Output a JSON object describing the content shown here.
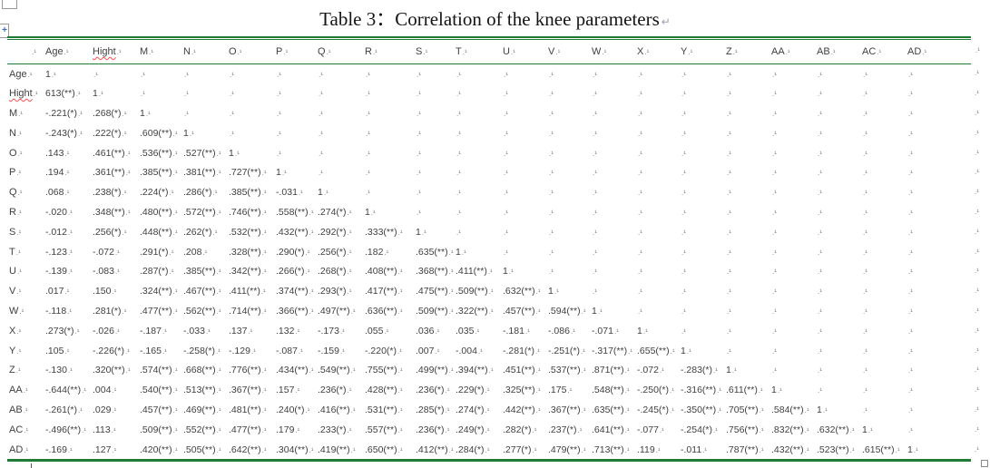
{
  "title": {
    "text": "Table 3：Correlation of the knee parameters",
    "pilcrow": "↵"
  },
  "formatting_marks": {
    "cell_end": ".¹",
    "row_end": ".¹"
  },
  "colors": {
    "table_border_green": "#1f7a34",
    "text": "#3f3f3f",
    "marker_gray": "#7d7d7d",
    "squiggle_red": "#ff4f4f",
    "pilcrow_gray": "#9aa4b0",
    "handle_blue": "#3a6bc4"
  },
  "spellcheck_flagged": [
    "Hight"
  ],
  "table": {
    "columns": [
      "",
      "Age",
      "Hight",
      "M",
      "N",
      "O",
      "P",
      "Q",
      "R",
      "S",
      "T",
      "U",
      "V",
      "W",
      "X",
      "Y",
      "Z",
      "AA",
      "AB",
      "AC",
      "AD"
    ],
    "rows": [
      {
        "label": "Age",
        "values": [
          "1"
        ]
      },
      {
        "label": "Hight",
        "values": [
          "613(**)",
          "1"
        ]
      },
      {
        "label": "M",
        "values": [
          "-.221(*)",
          ".268(*)",
          "1"
        ]
      },
      {
        "label": "N",
        "values": [
          "-.243(*)",
          ".222(*)",
          ".609(**)",
          "1"
        ]
      },
      {
        "label": "O",
        "values": [
          ".143",
          ".461(**)",
          ".536(**)",
          ".527(**)",
          "1"
        ]
      },
      {
        "label": "P",
        "values": [
          ".194",
          ".361(**)",
          ".385(**)",
          ".381(**)",
          ".727(**)",
          "1"
        ]
      },
      {
        "label": "Q",
        "values": [
          ".068",
          ".238(*)",
          ".224(*)",
          ".286(*)",
          ".385(**)",
          "-.031",
          "1"
        ]
      },
      {
        "label": "R",
        "values": [
          "-.020",
          ".348(**)",
          ".480(**)",
          ".572(**)",
          ".746(**)",
          ".558(**)",
          ".274(*)",
          "1"
        ]
      },
      {
        "label": "S",
        "values": [
          "-.012",
          ".256(*)",
          ".448(**)",
          ".262(*)",
          ".532(**)",
          ".432(**)",
          ".292(*)",
          ".333(**)",
          "1"
        ]
      },
      {
        "label": "T",
        "values": [
          "-.123",
          "-.072",
          ".291(*)",
          ".208",
          ".328(**)",
          ".290(*)",
          ".256(*)",
          ".182",
          ".635(**)",
          "1"
        ]
      },
      {
        "label": "U",
        "values": [
          "-.139",
          "-.083",
          ".287(*)",
          ".385(**)",
          ".342(**)",
          ".266(*)",
          ".268(*)",
          ".408(**)",
          ".368(**)",
          ".411(**)",
          "1"
        ]
      },
      {
        "label": "V",
        "values": [
          ".017",
          ".150",
          ".324(**)",
          ".467(**)",
          ".411(**)",
          ".374(**)",
          ".293(*)",
          ".417(**)",
          ".475(**)",
          ".509(**)",
          ".632(**)",
          "1"
        ]
      },
      {
        "label": "W",
        "values": [
          "-.118",
          ".281(*)",
          ".477(**)",
          ".562(**)",
          ".714(**)",
          ".366(**)",
          ".497(**)",
          ".636(**)",
          ".509(**)",
          ".322(**)",
          ".457(**)",
          ".594(**)",
          "1"
        ]
      },
      {
        "label": "X",
        "values": [
          ".273(*)",
          "-.026",
          "-.187",
          "-.033",
          ".137",
          ".132",
          "-.173",
          ".055",
          ".036",
          ".035",
          "-.181",
          "-.086",
          "-.071",
          "1"
        ]
      },
      {
        "label": "Y",
        "values": [
          ".105",
          "-.226(*)",
          "-.165",
          "-.258(*)",
          "-.129",
          "-.087",
          "-.159",
          "-.220(*)",
          ".007",
          "-.004",
          "-.281(*)",
          "-.251(*)",
          "-.317(**)",
          ".655(**)",
          "1"
        ]
      },
      {
        "label": "Z",
        "values": [
          "-.130",
          ".320(**)",
          ".574(**)",
          ".668(**)",
          ".776(**)",
          ".434(**)",
          ".549(**)",
          ".755(**)",
          ".499(**)",
          ".394(**)",
          ".451(**)",
          ".537(**)",
          ".871(**)",
          "-.072",
          "-.283(*)",
          "1"
        ]
      },
      {
        "label": "AA",
        "values": [
          "-.644(**)",
          ".004",
          ".540(**)",
          ".513(**)",
          ".367(**)",
          ".157",
          ".236(*)",
          ".428(**)",
          ".236(*)",
          ".229(*)",
          ".325(**)",
          ".175",
          ".548(**)",
          "-.250(*)",
          "-.316(**)",
          ".611(**)",
          "1"
        ]
      },
      {
        "label": "AB",
        "values": [
          "-.261(*)",
          ".029",
          ".457(**)",
          ".469(**)",
          ".481(**)",
          ".240(*)",
          ".416(**)",
          ".531(**)",
          ".285(*)",
          ".274(*)",
          ".442(**)",
          ".367(**)",
          ".635(**)",
          "-.245(*)",
          "-.350(**)",
          ".705(**)",
          ".584(**)",
          "1"
        ]
      },
      {
        "label": "AC",
        "values": [
          "-.496(**)",
          ".113",
          ".509(**)",
          ".552(**)",
          ".477(**)",
          ".179",
          ".233(*)",
          ".557(**)",
          ".236(*)",
          ".249(*)",
          ".282(*)",
          ".237(*)",
          ".641(**)",
          "-.077",
          "-.254(*)",
          ".756(**)",
          ".832(**)",
          ".632(**)",
          "1"
        ]
      },
      {
        "label": "AD",
        "values": [
          "-.169",
          ".127",
          ".420(**)",
          ".505(**)",
          ".642(**)",
          ".304(**)",
          ".419(**)",
          ".650(**)",
          ".412(**)",
          ".284(*)",
          ".277(*)",
          ".479(**)",
          ".713(**)",
          ".119",
          "-.011",
          ".787(**)",
          ".432(**)",
          ".523(**)",
          ".615(**)",
          "1"
        ]
      }
    ]
  }
}
